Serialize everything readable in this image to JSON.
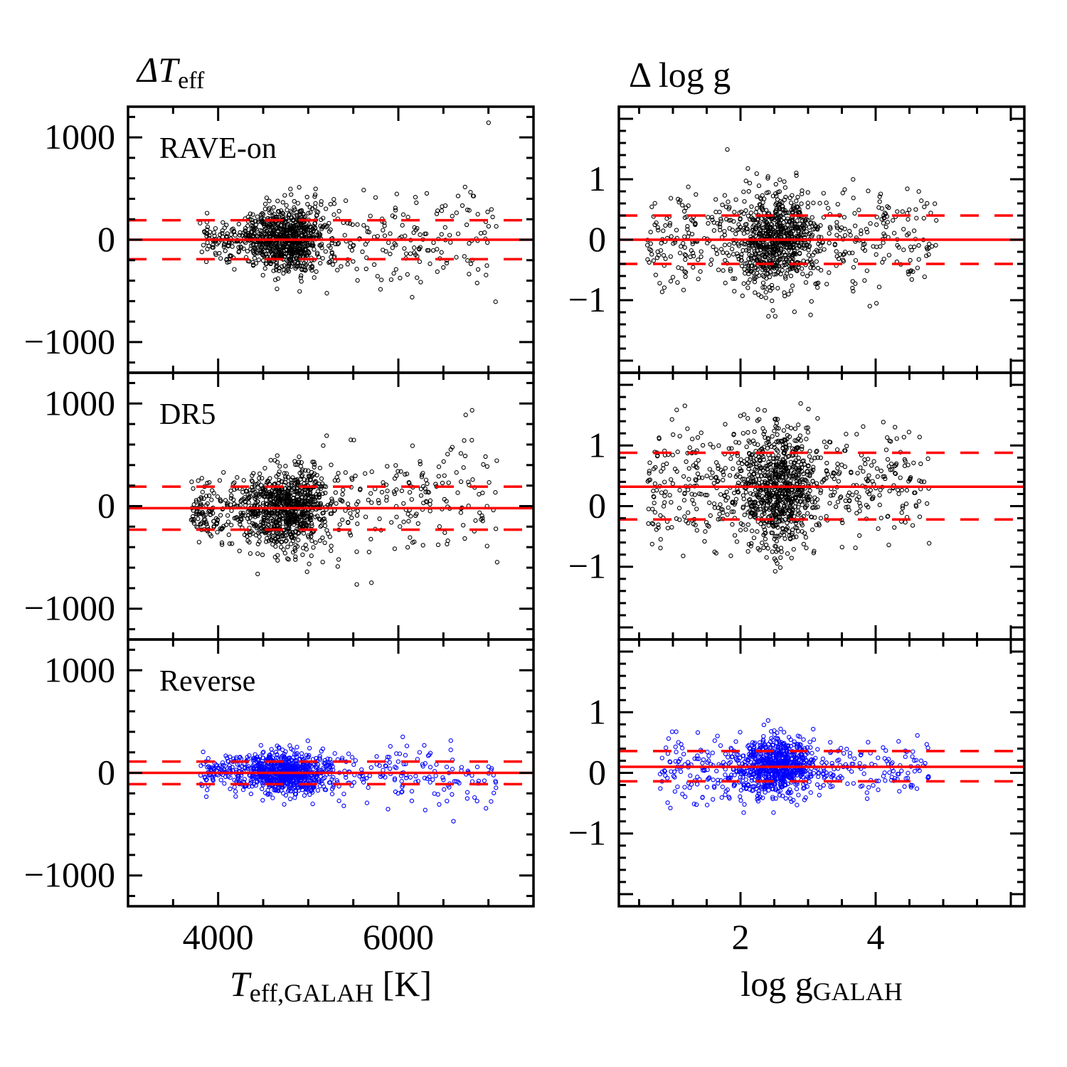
{
  "chart_data": [
    {
      "type": "scatter",
      "column_title": "ΔT",
      "column_title_sub": "eff",
      "xlabel": "T",
      "xlabel_sub": "eff,GALAH",
      "xlabel_unit": " [K]",
      "xlim": [
        3000,
        7500
      ],
      "ylim": [
        -1300,
        1300
      ],
      "x_ticks": [
        4000,
        6000
      ],
      "x_tick_labels": [
        "4000",
        "6000"
      ],
      "y_ticks": [
        -1000,
        0,
        1000
      ],
      "y_tick_labels": [
        "−1000",
        "0",
        "1000"
      ],
      "rows": [
        {
          "label": "RAVE-on",
          "color": "#000000",
          "center": 0,
          "lower": -190,
          "upper": 190,
          "distribution": {
            "x_range": [
              3800,
              7100
            ],
            "x_peak": 4750,
            "mean_slope": 0.02,
            "scatter_low": 90,
            "scatter_high": 320,
            "n": 1100,
            "seed": 11
          }
        },
        {
          "label": "DR5",
          "color": "#000000",
          "center": -20,
          "lower": -230,
          "upper": 190,
          "distribution": {
            "x_range": [
              3700,
              7100
            ],
            "x_peak": 4750,
            "mean_slope": 0.05,
            "scatter_low": 120,
            "scatter_high": 360,
            "n": 1200,
            "seed": 23
          }
        },
        {
          "label": "Reverse",
          "color": "#0000ff",
          "center": 0,
          "lower": -110,
          "upper": 110,
          "distribution": {
            "x_range": [
              3800,
              7100
            ],
            "x_peak": 4750,
            "mean_slope": -0.02,
            "scatter_low": 75,
            "scatter_high": 160,
            "n": 1000,
            "seed": 37
          }
        }
      ]
    },
    {
      "type": "scatter",
      "column_title": "Δ log g",
      "xlabel": "log g",
      "xlabel_sub": "GALAH",
      "xlim": [
        0.2,
        6.2
      ],
      "ylim": [
        -2.2,
        2.2
      ],
      "x_ticks": [
        2,
        4
      ],
      "x_tick_labels": [
        "2",
        "4"
      ],
      "y_ticks": [
        -1,
        0,
        1
      ],
      "y_tick_labels": [
        "−1",
        "0",
        "1"
      ],
      "rows": [
        {
          "label": "",
          "color": "#000000",
          "center": 0.0,
          "lower": -0.4,
          "upper": 0.4,
          "distribution": {
            "x_range": [
              0.6,
              4.9
            ],
            "x_peak": 2.5,
            "mean_slope": 0.0,
            "scatter_low": 0.38,
            "scatter_high": 0.42,
            "n": 1100,
            "seed": 51
          }
        },
        {
          "label": "",
          "color": "#000000",
          "center": 0.32,
          "lower": -0.22,
          "upper": 0.88,
          "distribution": {
            "x_range": [
              0.6,
              4.8
            ],
            "x_peak": 2.5,
            "mean_slope": 0.0,
            "scatter_low": 0.5,
            "scatter_high": 0.45,
            "n": 1200,
            "seed": 67
          }
        },
        {
          "label": "",
          "color": "#0000ff",
          "center": 0.1,
          "lower": -0.14,
          "upper": 0.36,
          "distribution": {
            "x_range": [
              0.8,
              4.8
            ],
            "x_peak": 2.5,
            "mean_slope": 0.0,
            "scatter_low": 0.28,
            "scatter_high": 0.18,
            "n": 1000,
            "seed": 83
          }
        }
      ]
    }
  ]
}
